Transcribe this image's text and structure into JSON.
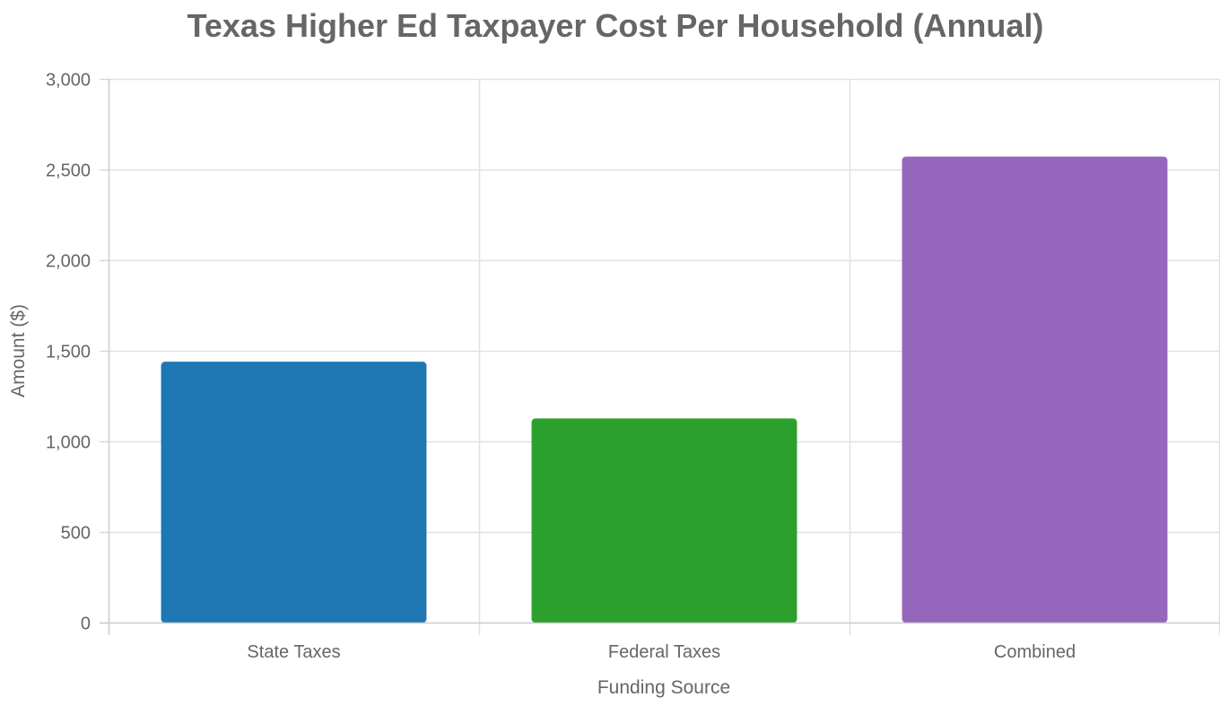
{
  "chart_data": {
    "type": "bar",
    "title": "Texas Higher Ed Taxpayer Cost Per Household (Annual)",
    "xlabel": "Funding Source",
    "ylabel": "Amount ($)",
    "categories": [
      "State Taxes",
      "Federal Taxes",
      "Combined"
    ],
    "values": [
      1438,
      1125,
      2570
    ],
    "colors": [
      "#1f77b4",
      "#2ca02c",
      "#9467bd"
    ],
    "ylim": [
      0,
      3000
    ],
    "yticks": [
      0,
      500,
      1000,
      1500,
      2000,
      2500,
      3000
    ],
    "ytick_labels": [
      "0",
      "500",
      "1,000",
      "1,500",
      "2,000",
      "2,500",
      "3,000"
    ],
    "grid": true,
    "legend": "none"
  }
}
